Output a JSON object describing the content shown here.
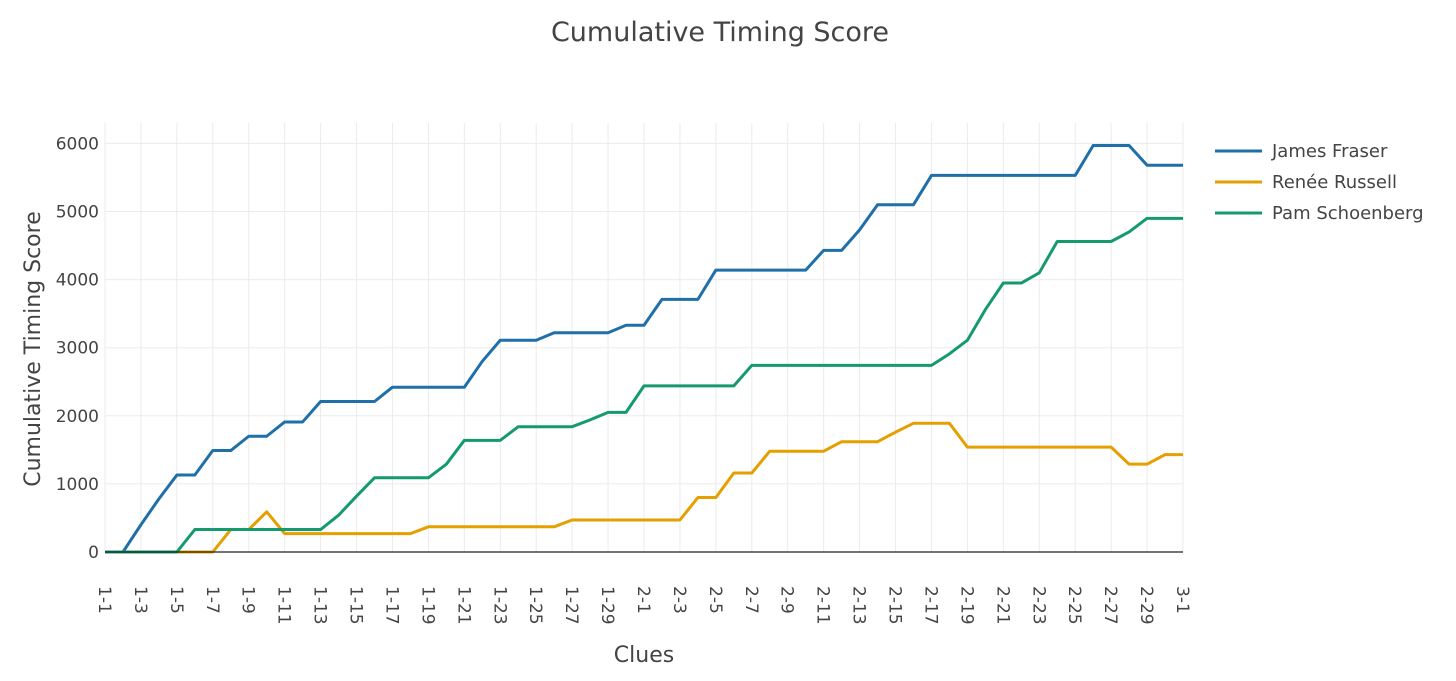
{
  "chart_data": {
    "type": "line",
    "title": "Cumulative Timing Score",
    "xlabel": "Clues",
    "ylabel": "Cumulative Timing Score",
    "ylim": [
      0,
      6300
    ],
    "yticks": [
      0,
      1000,
      2000,
      3000,
      4000,
      5000,
      6000
    ],
    "grid": true,
    "legend_position": "top-right",
    "x": [
      "1-1",
      "1-2",
      "1-3",
      "1-4",
      "1-5",
      "1-6",
      "1-7",
      "1-8",
      "1-9",
      "1-10",
      "1-11",
      "1-12",
      "1-13",
      "1-14",
      "1-15",
      "1-16",
      "1-17",
      "1-18",
      "1-19",
      "1-20",
      "1-21",
      "1-22",
      "1-23",
      "1-24",
      "1-25",
      "1-26",
      "1-27",
      "1-28",
      "1-29",
      "1-30",
      "2-1",
      "2-2",
      "2-3",
      "2-4",
      "2-5",
      "2-6",
      "2-7",
      "2-8",
      "2-9",
      "2-10",
      "2-11",
      "2-12",
      "2-13",
      "2-14",
      "2-15",
      "2-16",
      "2-17",
      "2-18",
      "2-19",
      "2-20",
      "2-21",
      "2-22",
      "2-23",
      "2-24",
      "2-25",
      "2-26",
      "2-27",
      "2-28",
      "2-29",
      "2-30",
      "3-1"
    ],
    "xticks": [
      "1-1",
      "1-3",
      "1-5",
      "1-7",
      "1-9",
      "1-11",
      "1-13",
      "1-15",
      "1-17",
      "1-19",
      "1-21",
      "1-23",
      "1-25",
      "1-27",
      "1-29",
      "2-1",
      "2-3",
      "2-5",
      "2-7",
      "2-9",
      "2-11",
      "2-13",
      "2-15",
      "2-17",
      "2-19",
      "2-21",
      "2-23",
      "2-25",
      "2-27",
      "2-29",
      "3-1"
    ],
    "series": [
      {
        "name": "James Fraser",
        "color": "#1f6fa8",
        "values": [
          0,
          0,
          400,
          780,
          1130,
          1130,
          1490,
          1490,
          1700,
          1700,
          1910,
          1910,
          2210,
          2210,
          2210,
          2210,
          2420,
          2420,
          2420,
          2420,
          2420,
          2800,
          3110,
          3110,
          3110,
          3220,
          3220,
          3220,
          3220,
          3330,
          3330,
          3710,
          3710,
          3710,
          4140,
          4140,
          4140,
          4140,
          4140,
          4140,
          4430,
          4430,
          4730,
          5100,
          5100,
          5100,
          5530,
          5530,
          5530,
          5530,
          5530,
          5530,
          5530,
          5530,
          5530,
          5970,
          5970,
          5970,
          5680,
          5680,
          5680
        ]
      },
      {
        "name": "Renée Russell",
        "color": "#e69f00",
        "values": [
          0,
          0,
          0,
          0,
          0,
          0,
          0,
          330,
          330,
          590,
          270,
          270,
          270,
          270,
          270,
          270,
          270,
          270,
          370,
          370,
          370,
          370,
          370,
          370,
          370,
          370,
          470,
          470,
          470,
          470,
          470,
          470,
          470,
          800,
          800,
          1160,
          1160,
          1480,
          1480,
          1480,
          1480,
          1620,
          1620,
          1620,
          1760,
          1890,
          1890,
          1890,
          1540,
          1540,
          1540,
          1540,
          1540,
          1540,
          1540,
          1540,
          1540,
          1290,
          1290,
          1430,
          1430
        ]
      },
      {
        "name": "Pam Schoenberg",
        "color": "#159a6e",
        "values": [
          0,
          0,
          0,
          0,
          0,
          330,
          330,
          330,
          330,
          330,
          330,
          330,
          330,
          540,
          820,
          1090,
          1090,
          1090,
          1090,
          1290,
          1640,
          1640,
          1640,
          1840,
          1840,
          1840,
          1840,
          1940,
          2050,
          2050,
          2440,
          2440,
          2440,
          2440,
          2440,
          2440,
          2740,
          2740,
          2740,
          2740,
          2740,
          2740,
          2740,
          2740,
          2740,
          2740,
          2740,
          2910,
          3110,
          3560,
          3950,
          3950,
          4100,
          4560,
          4560,
          4560,
          4560,
          4700,
          4900,
          4900,
          4900
        ]
      }
    ]
  }
}
